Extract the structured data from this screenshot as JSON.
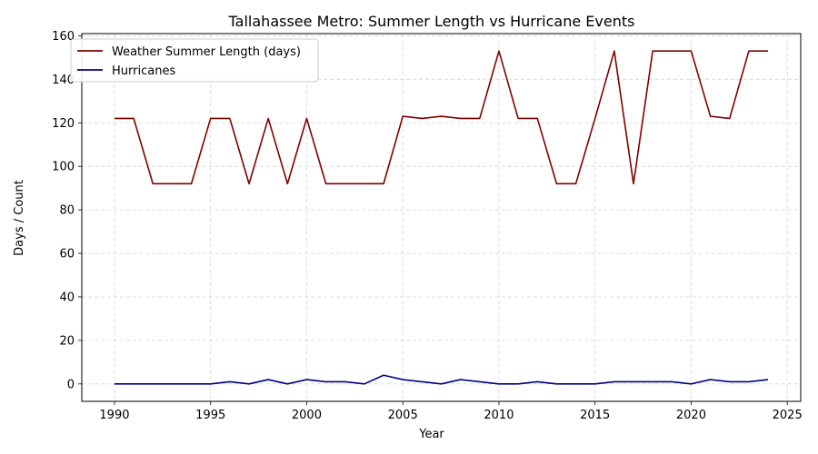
{
  "chart_data": {
    "type": "line",
    "title": "Tallahassee Metro: Summer Length vs Hurricane Events",
    "xlabel": "Year",
    "ylabel": "Days / Count",
    "xlim": [
      1988.3,
      2025.7
    ],
    "ylim": [
      -8,
      161
    ],
    "xticks": [
      1990,
      1995,
      2000,
      2005,
      2010,
      2015,
      2020,
      2025
    ],
    "yticks": [
      0,
      20,
      40,
      60,
      80,
      100,
      120,
      140,
      160
    ],
    "grid": true,
    "legend_position": "upper-left",
    "x": [
      1990,
      1991,
      1992,
      1993,
      1994,
      1995,
      1996,
      1997,
      1998,
      1999,
      2000,
      2001,
      2002,
      2003,
      2004,
      2005,
      2006,
      2007,
      2008,
      2009,
      2010,
      2011,
      2012,
      2013,
      2014,
      2015,
      2016,
      2017,
      2018,
      2019,
      2020,
      2021,
      2022,
      2023,
      2024
    ],
    "series": [
      {
        "name": "Weather Summer Length (days)",
        "color": "#800000",
        "values": [
          122,
          122,
          92,
          92,
          92,
          122,
          122,
          92,
          122,
          92,
          122,
          92,
          92,
          92,
          92,
          123,
          122,
          123,
          122,
          122,
          153,
          122,
          122,
          92,
          92,
          122,
          153,
          92,
          153,
          153,
          153,
          123,
          122,
          153,
          153
        ]
      },
      {
        "name": "Hurricanes",
        "color": "#000080",
        "values": [
          0,
          0,
          0,
          0,
          0,
          0,
          1,
          0,
          2,
          0,
          2,
          1,
          1,
          0,
          4,
          2,
          1,
          0,
          2,
          1,
          0,
          0,
          1,
          0,
          0,
          0,
          1,
          1,
          1,
          1,
          0,
          2,
          1,
          1,
          2
        ]
      }
    ]
  }
}
